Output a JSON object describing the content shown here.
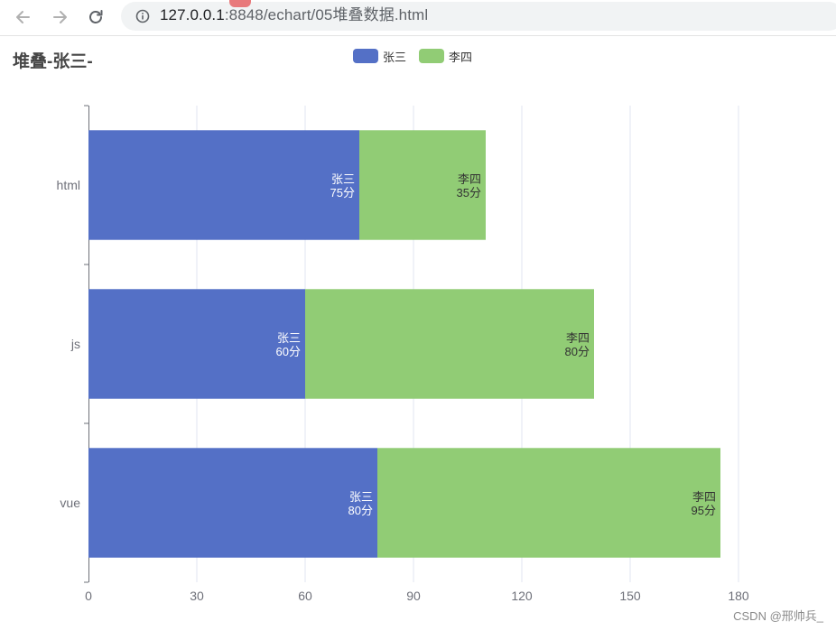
{
  "browser": {
    "url_host": "127.0.0.1",
    "url_path": ":8848/echart/05堆叠数据.html"
  },
  "chart_data": {
    "type": "bar",
    "orientation": "horizontal",
    "stacked": true,
    "title": "堆叠-张三-",
    "categories": [
      "html",
      "js",
      "vue"
    ],
    "series": [
      {
        "name": "张三",
        "color": "#5470c6",
        "values": [
          75,
          60,
          80
        ],
        "label_suffix": "分",
        "label_color": "#ffffff"
      },
      {
        "name": "李四",
        "color": "#91cc75",
        "values": [
          35,
          80,
          95
        ],
        "label_suffix": "分",
        "label_color": "#333333"
      }
    ],
    "xlim": [
      0,
      180
    ],
    "xticks": [
      0,
      30,
      60,
      90,
      120,
      150,
      180
    ],
    "grid": true,
    "legend_position": "top-center"
  },
  "watermark": "CSDN @邢帅兵_"
}
